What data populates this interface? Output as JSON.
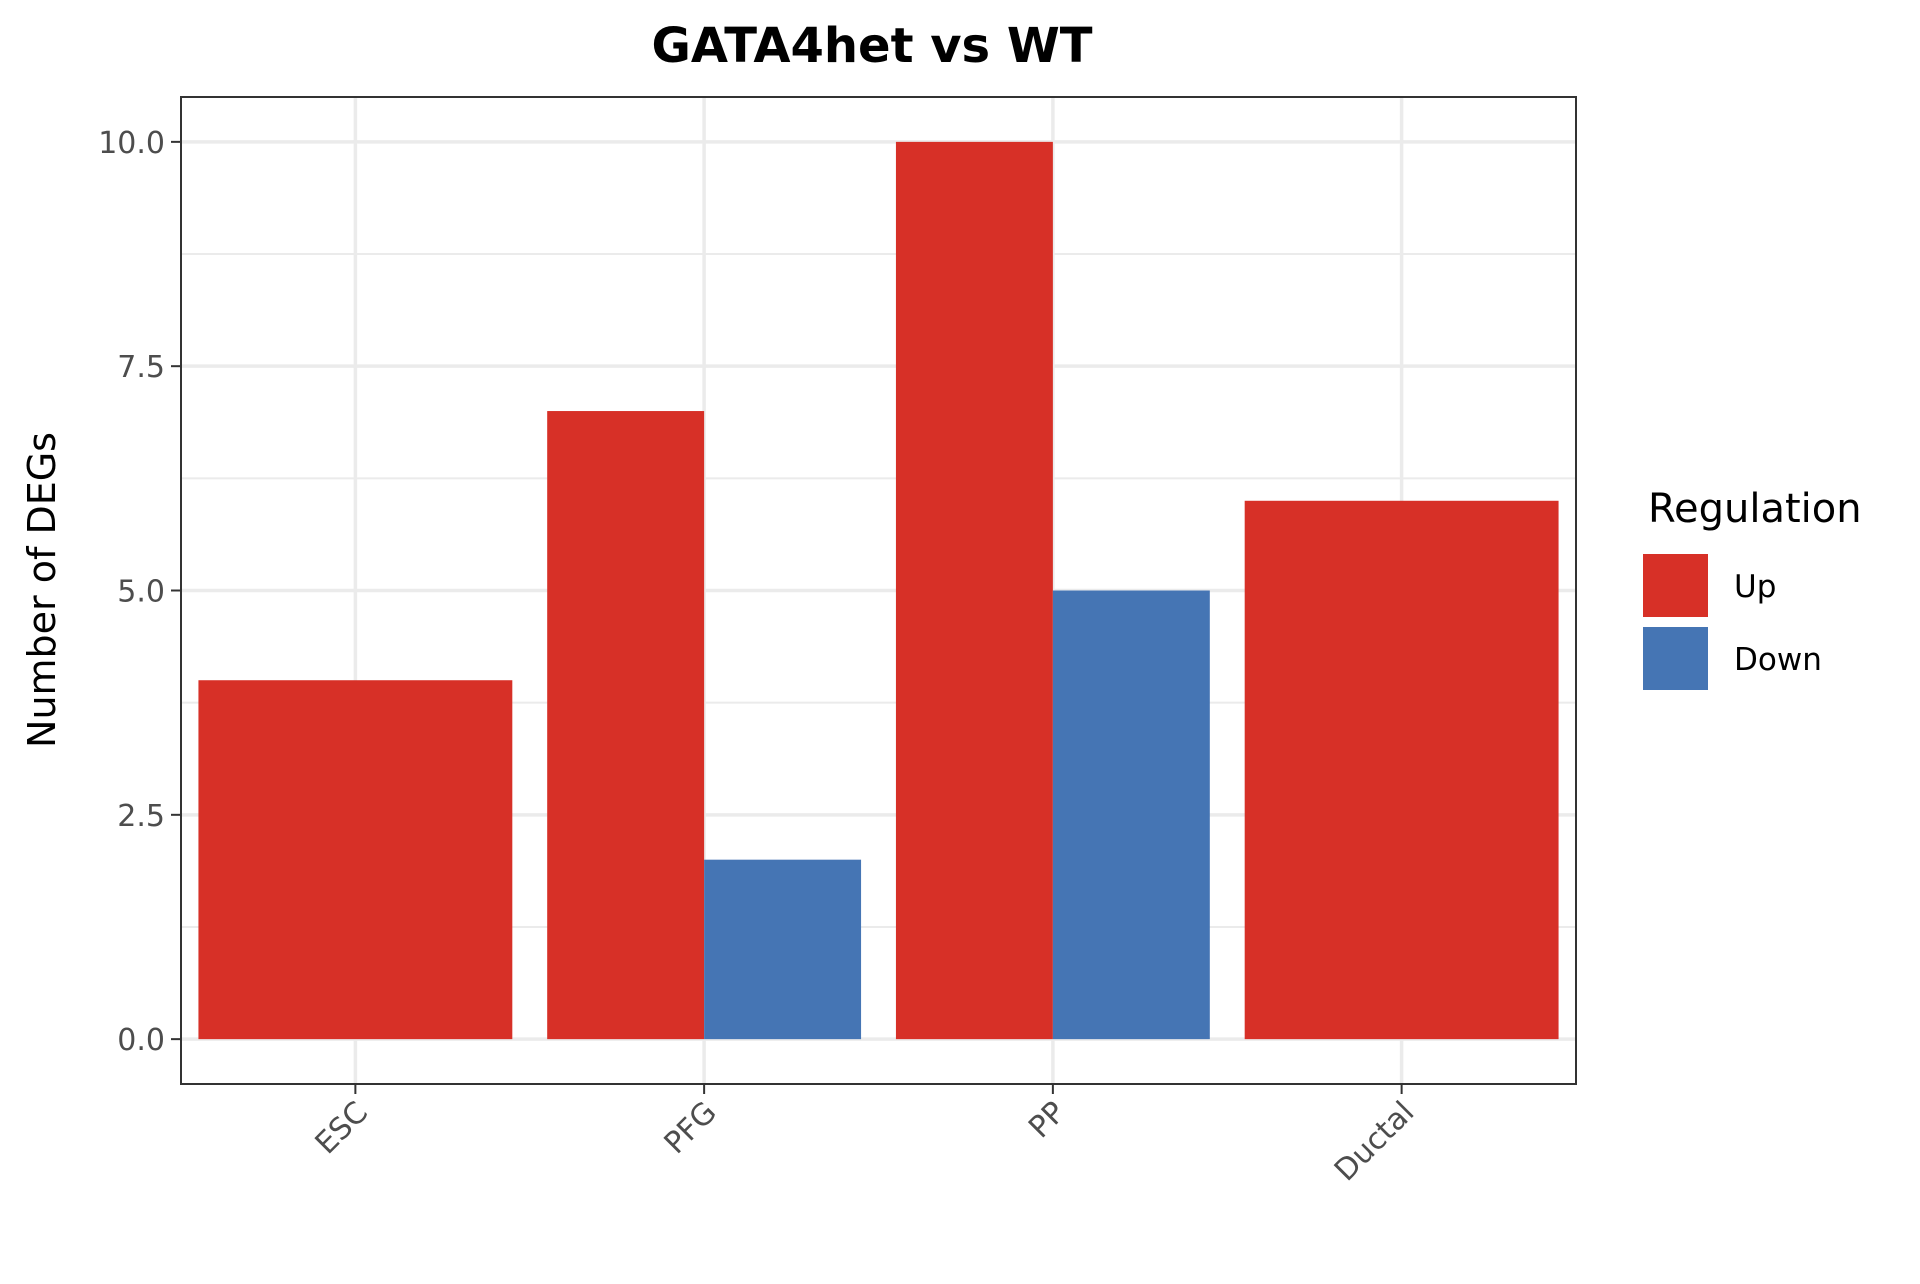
{
  "chart_data": {
    "type": "bar",
    "title": "GATA4het vs WT",
    "xlabel": "",
    "ylabel": "Number of DEGs",
    "categories": [
      "ESC",
      "PFG",
      "PP",
      "Ductal"
    ],
    "series": [
      {
        "name": "Up",
        "color": "#D73027",
        "values": [
          4,
          7,
          10,
          6
        ]
      },
      {
        "name": "Down",
        "color": "#4575B4",
        "values": [
          null,
          2,
          5,
          null
        ]
      }
    ],
    "ylim": [
      -0.5,
      10.5
    ],
    "yticks": [
      0.0,
      2.5,
      5.0,
      7.5,
      10.0
    ],
    "ytick_labels": [
      "0.0",
      "2.5",
      "5.0",
      "7.5",
      "10.0"
    ],
    "grid": true,
    "legend": {
      "title": "Regulation",
      "placement": "right",
      "entries": [
        "Up",
        "Down"
      ]
    },
    "colors": {
      "panel_border": "#333333",
      "grid": "#EBEBEB",
      "tick_label": "#4D4D4D"
    }
  }
}
